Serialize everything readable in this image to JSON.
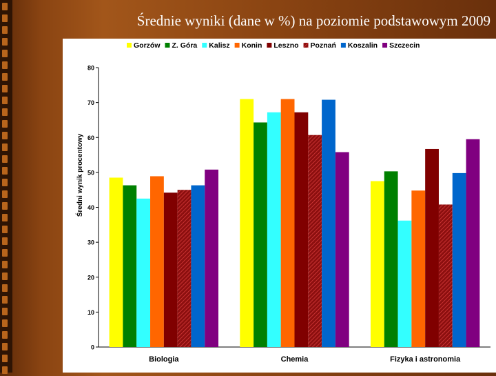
{
  "slide": {
    "title": "Średnie wyniki (dane w %) na poziomie podstawowym 2009"
  },
  "chart_data": {
    "type": "bar",
    "title": "",
    "ylabel": "Średni wynik procentowy",
    "xlabel": "",
    "ylim": [
      0,
      80
    ],
    "yticks": [
      0,
      10,
      20,
      30,
      40,
      50,
      60,
      70,
      80
    ],
    "grid": false,
    "legend_position": "top",
    "categories": [
      "Biologia",
      "Chemia",
      "Fizyka i astronomia"
    ],
    "series": [
      {
        "name": "Gorzów",
        "color": "#ffff00",
        "values": [
          48.5,
          71.0,
          47.5
        ]
      },
      {
        "name": "Z. Góra",
        "color": "#008000",
        "values": [
          46.3,
          64.3,
          50.3
        ]
      },
      {
        "name": "Kalisz",
        "color": "#33ffff",
        "values": [
          42.5,
          67.2,
          36.2
        ]
      },
      {
        "name": "Konin",
        "color": "#ff6600",
        "values": [
          48.9,
          71.0,
          44.8
        ]
      },
      {
        "name": "Leszno",
        "color": "#800000",
        "values": [
          44.2,
          67.2,
          56.7
        ]
      },
      {
        "name": "Poznań",
        "color": "#b01818",
        "pattern": "hatched",
        "values": [
          45.0,
          60.7,
          40.8
        ]
      },
      {
        "name": "Koszalin",
        "color": "#0066cc",
        "values": [
          46.3,
          70.8,
          49.8
        ]
      },
      {
        "name": "Szczecin",
        "color": "#800080",
        "values": [
          50.8,
          55.8,
          59.5
        ]
      }
    ]
  }
}
